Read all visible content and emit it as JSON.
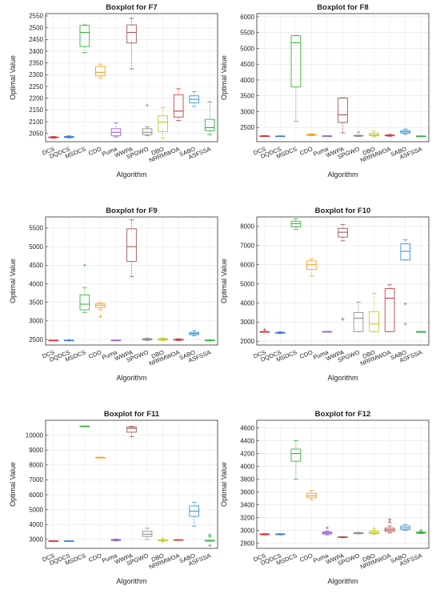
{
  "chart_data": [
    {
      "type": "box",
      "title": "Boxplot for F7",
      "xlabel": "Algorithm",
      "ylabel": "Optimal Value",
      "ylim": [
        2015,
        2560
      ],
      "yticks": [
        2050,
        2100,
        2150,
        2200,
        2250,
        2300,
        2350,
        2400,
        2450,
        2500,
        2550
      ],
      "grid": true,
      "categories": [
        "DCS",
        "DQDCS",
        "MSDCS",
        "CDO",
        "Puma",
        "WWPA",
        "SPGWO",
        "DBO",
        "NRRMWOA",
        "SABO",
        "ASFSSA"
      ],
      "colors": [
        "#e03030",
        "#3a7ed8",
        "#3cb43c",
        "#f5a020",
        "#9a5fd0",
        "#9e5a50",
        "#909090",
        "#c8c830",
        "#c84040",
        "#3c9ad0",
        "#30b040"
      ],
      "boxes": [
        {
          "min": 2030,
          "q1": 2032,
          "median": 2034,
          "q3": 2035,
          "max": 2037,
          "outliers": []
        },
        {
          "min": 2031,
          "q1": 2033,
          "median": 2035,
          "q3": 2037,
          "max": 2040,
          "outliers": []
        },
        {
          "min": 2395,
          "q1": 2420,
          "median": 2480,
          "q3": 2510,
          "max": 2512,
          "outliers": []
        },
        {
          "min": 2285,
          "q1": 2295,
          "median": 2310,
          "q3": 2335,
          "max": 2345,
          "outliers": []
        },
        {
          "min": 2035,
          "q1": 2040,
          "median": 2055,
          "q3": 2070,
          "max": 2095,
          "outliers": []
        },
        {
          "min": 2325,
          "q1": 2435,
          "median": 2480,
          "q3": 2512,
          "max": 2540,
          "outliers": []
        },
        {
          "min": 2040,
          "q1": 2045,
          "median": 2055,
          "q3": 2070,
          "max": 2078,
          "outliers": [
            2170
          ]
        },
        {
          "min": 2030,
          "q1": 2058,
          "median": 2098,
          "q3": 2125,
          "max": 2160,
          "outliers": []
        },
        {
          "min": 2105,
          "q1": 2120,
          "median": 2145,
          "q3": 2215,
          "max": 2240,
          "outliers": []
        },
        {
          "min": 2165,
          "q1": 2180,
          "median": 2195,
          "q3": 2210,
          "max": 2228,
          "outliers": []
        },
        {
          "min": 2045,
          "q1": 2062,
          "median": 2075,
          "q3": 2110,
          "max": 2185,
          "outliers": []
        }
      ]
    },
    {
      "type": "box",
      "title": "Boxplot for F8",
      "xlabel": "Algorithm",
      "ylabel": "Optimal Value",
      "ylim": [
        2050,
        6100
      ],
      "yticks": [
        2500,
        3000,
        3500,
        4000,
        4500,
        5000,
        5500,
        6000
      ],
      "grid": true,
      "categories": [
        "DCS",
        "DQDCS",
        "MSDCS",
        "CDO",
        "Puma",
        "WWPA",
        "SPGWO",
        "DBO",
        "NRRMWOA",
        "SABO",
        "ASFSSA"
      ],
      "colors": [
        "#e03030",
        "#3a7ed8",
        "#3cb43c",
        "#f5a020",
        "#9a5fd0",
        "#9e5a50",
        "#909090",
        "#c8c830",
        "#c84040",
        "#3c9ad0",
        "#30b040"
      ],
      "boxes": [
        {
          "min": 2220,
          "q1": 2225,
          "median": 2230,
          "q3": 2235,
          "max": 2245,
          "outliers": []
        },
        {
          "min": 2215,
          "q1": 2220,
          "median": 2225,
          "q3": 2230,
          "max": 2235,
          "outliers": []
        },
        {
          "min": 2700,
          "q1": 3780,
          "median": 5180,
          "q3": 5400,
          "max": 5410,
          "outliers": []
        },
        {
          "min": 2240,
          "q1": 2250,
          "median": 2270,
          "q3": 2285,
          "max": 2300,
          "outliers": []
        },
        {
          "min": 2225,
          "q1": 2228,
          "median": 2232,
          "q3": 2236,
          "max": 2240,
          "outliers": []
        },
        {
          "min": 2330,
          "q1": 2660,
          "median": 2900,
          "q3": 3430,
          "max": 3440,
          "outliers": []
        },
        {
          "min": 2210,
          "q1": 2225,
          "median": 2240,
          "q3": 2250,
          "max": 2260,
          "outliers": [
            2350
          ]
        },
        {
          "min": 2215,
          "q1": 2240,
          "median": 2270,
          "q3": 2320,
          "max": 2380,
          "outliers": []
        },
        {
          "min": 2220,
          "q1": 2235,
          "median": 2245,
          "q3": 2260,
          "max": 2280,
          "outliers": []
        },
        {
          "min": 2280,
          "q1": 2320,
          "median": 2360,
          "q3": 2400,
          "max": 2450,
          "outliers": []
        },
        {
          "min": 2215,
          "q1": 2220,
          "median": 2225,
          "q3": 2230,
          "max": 2235,
          "outliers": []
        }
      ]
    },
    {
      "type": "box",
      "title": "Boxplot for F9",
      "xlabel": "Algorithm",
      "ylabel": "Optimal Value",
      "ylim": [
        2350,
        5800
      ],
      "yticks": [
        2500,
        3000,
        3500,
        4000,
        4500,
        5000,
        5500
      ],
      "grid": true,
      "categories": [
        "DCS",
        "DQDCS",
        "MSDCS",
        "CDO",
        "Puma",
        "WWPA",
        "SPGWO",
        "DBO",
        "NRRMWOA",
        "SABO",
        "ASFSSA"
      ],
      "colors": [
        "#e03030",
        "#3a7ed8",
        "#3cb43c",
        "#f5a020",
        "#9a5fd0",
        "#9e5a50",
        "#909090",
        "#c8c830",
        "#c84040",
        "#3c9ad0",
        "#30b040"
      ],
      "boxes": [
        {
          "min": 2478,
          "q1": 2479,
          "median": 2480,
          "q3": 2481,
          "max": 2482,
          "outliers": []
        },
        {
          "min": 2478,
          "q1": 2479,
          "median": 2480,
          "q3": 2481,
          "max": 2482,
          "outliers": [
            2480
          ]
        },
        {
          "min": 3220,
          "q1": 3300,
          "median": 3450,
          "q3": 3700,
          "max": 3900,
          "outliers": [
            4500
          ]
        },
        {
          "min": 3300,
          "q1": 3360,
          "median": 3420,
          "q3": 3460,
          "max": 3500,
          "outliers": [
            3120
          ]
        },
        {
          "min": 2478,
          "q1": 2479,
          "median": 2480,
          "q3": 2481,
          "max": 2482,
          "outliers": []
        },
        {
          "min": 4200,
          "q1": 4600,
          "median": 5000,
          "q3": 5480,
          "max": 5720,
          "outliers": []
        },
        {
          "min": 2470,
          "q1": 2485,
          "median": 2500,
          "q3": 2520,
          "max": 2540,
          "outliers": []
        },
        {
          "min": 2470,
          "q1": 2485,
          "median": 2500,
          "q3": 2520,
          "max": 2540,
          "outliers": []
        },
        {
          "min": 2470,
          "q1": 2482,
          "median": 2495,
          "q3": 2505,
          "max": 2520,
          "outliers": []
        },
        {
          "min": 2600,
          "q1": 2630,
          "median": 2660,
          "q3": 2690,
          "max": 2740,
          "outliers": []
        },
        {
          "min": 2478,
          "q1": 2479,
          "median": 2480,
          "q3": 2481,
          "max": 2482,
          "outliers": [
            2480
          ]
        }
      ]
    },
    {
      "type": "box",
      "title": "Boxplot for F10",
      "xlabel": "Algorithm",
      "ylabel": "Optimal Value",
      "ylim": [
        1800,
        8500
      ],
      "yticks": [
        2000,
        3000,
        4000,
        5000,
        6000,
        7000,
        8000
      ],
      "grid": true,
      "categories": [
        "DCS",
        "DQDCS",
        "MSDCS",
        "CDO",
        "Puma",
        "WWPA",
        "SPGWO",
        "DBO",
        "NRRMWOA",
        "SABO",
        "ASFSSA"
      ],
      "colors": [
        "#e03030",
        "#3a7ed8",
        "#3cb43c",
        "#f5a020",
        "#9a5fd0",
        "#9e5a50",
        "#909090",
        "#c8c830",
        "#c84040",
        "#3c9ad0",
        "#30b040"
      ],
      "boxes": [
        {
          "min": 2500,
          "q1": 2500,
          "median": 2500,
          "q3": 2500,
          "max": 2500,
          "outliers": [
            2600
          ]
        },
        {
          "min": 2400,
          "q1": 2420,
          "median": 2440,
          "q3": 2460,
          "max": 2500,
          "outliers": []
        },
        {
          "min": 7850,
          "q1": 7980,
          "median": 8150,
          "q3": 8280,
          "max": 8400,
          "outliers": []
        },
        {
          "min": 5400,
          "q1": 5750,
          "median": 6000,
          "q3": 6200,
          "max": 6300,
          "outliers": []
        },
        {
          "min": 2490,
          "q1": 2495,
          "median": 2500,
          "q3": 2505,
          "max": 2510,
          "outliers": []
        },
        {
          "min": 7250,
          "q1": 7450,
          "median": 7700,
          "q3": 7900,
          "max": 8100,
          "outliers": [
            3150
          ]
        },
        {
          "min": 2500,
          "q1": 2500,
          "median": 3200,
          "q3": 3500,
          "max": 4050,
          "outliers": []
        },
        {
          "min": 2500,
          "q1": 2500,
          "median": 2900,
          "q3": 3550,
          "max": 4500,
          "outliers": []
        },
        {
          "min": 2500,
          "q1": 2500,
          "median": 4250,
          "q3": 4750,
          "max": 4950,
          "outliers": []
        },
        {
          "min": 6250,
          "q1": 6250,
          "median": 6700,
          "q3": 7100,
          "max": 7300,
          "outliers": [
            3950,
            2900
          ]
        },
        {
          "min": 2500,
          "q1": 2500,
          "median": 2500,
          "q3": 2500,
          "max": 2500,
          "outliers": []
        }
      ]
    },
    {
      "type": "box",
      "title": "Boxplot for F11",
      "xlabel": "Algorithm",
      "ylabel": "Optimal Value",
      "ylim": [
        2400,
        11000
      ],
      "yticks": [
        3000,
        4000,
        5000,
        6000,
        7000,
        8000,
        9000,
        10000
      ],
      "grid": true,
      "categories": [
        "DCS",
        "DQDCS",
        "MSDCS",
        "CDO",
        "Puma",
        "WWPA",
        "SPGWO",
        "DBO",
        "NRRMWOA",
        "SABO",
        "ASFSSA"
      ],
      "colors": [
        "#e03030",
        "#3a7ed8",
        "#3cb43c",
        "#f5a020",
        "#9a5fd0",
        "#9e5a50",
        "#909090",
        "#c8c830",
        "#c84040",
        "#3c9ad0",
        "#30b040"
      ],
      "boxes": [
        {
          "min": 2890,
          "q1": 2895,
          "median": 2900,
          "q3": 2905,
          "max": 2910,
          "outliers": []
        },
        {
          "min": 2890,
          "q1": 2895,
          "median": 2900,
          "q3": 2905,
          "max": 2910,
          "outliers": []
        },
        {
          "min": 10580,
          "q1": 10590,
          "median": 10600,
          "q3": 10610,
          "max": 10620,
          "outliers": []
        },
        {
          "min": 8480,
          "q1": 8490,
          "median": 8500,
          "q3": 8510,
          "max": 8520,
          "outliers": []
        },
        {
          "min": 2900,
          "q1": 2930,
          "median": 2970,
          "q3": 3000,
          "max": 3020,
          "outliers": []
        },
        {
          "min": 9900,
          "q1": 10200,
          "median": 10450,
          "q3": 10550,
          "max": 10600,
          "outliers": []
        },
        {
          "min": 3000,
          "q1": 3200,
          "median": 3350,
          "q3": 3550,
          "max": 3750,
          "outliers": []
        },
        {
          "min": 2930,
          "q1": 2940,
          "median": 2950,
          "q3": 2960,
          "max": 2970,
          "outliers": [
            3050,
            2850
          ]
        },
        {
          "min": 2930,
          "q1": 2945,
          "median": 2960,
          "q3": 2980,
          "max": 2990,
          "outliers": []
        },
        {
          "min": 3900,
          "q1": 4550,
          "median": 4900,
          "q3": 5250,
          "max": 5500,
          "outliers": []
        },
        {
          "min": 2900,
          "q1": 2910,
          "median": 2920,
          "q3": 2930,
          "max": 2940,
          "outliers": [
            3300,
            3200,
            2600
          ]
        }
      ]
    },
    {
      "type": "box",
      "title": "Boxplot for F12",
      "xlabel": "Algorithm",
      "ylabel": "Optimal Value",
      "ylim": [
        2720,
        4720
      ],
      "yticks": [
        2800,
        3000,
        3200,
        3400,
        3600,
        3800,
        4000,
        4200,
        4400,
        4600
      ],
      "grid": true,
      "categories": [
        "DCS",
        "DQDCS",
        "MSDCS",
        "CDO",
        "Puma",
        "WWPA",
        "SPGWO",
        "DBO",
        "NRRMWOA",
        "SABO",
        "ASFSSA"
      ],
      "colors": [
        "#e03030",
        "#3a7ed8",
        "#3cb43c",
        "#f5a020",
        "#9a5fd0",
        "#9e5a50",
        "#909090",
        "#c8c830",
        "#c84040",
        "#3c9ad0",
        "#30b040"
      ],
      "boxes": [
        {
          "min": 2930,
          "q1": 2935,
          "median": 2940,
          "q3": 2945,
          "max": 2950,
          "outliers": []
        },
        {
          "min": 2930,
          "q1": 2935,
          "median": 2940,
          "q3": 2945,
          "max": 2950,
          "outliers": []
        },
        {
          "min": 3800,
          "q1": 4080,
          "median": 4200,
          "q3": 4270,
          "max": 4400,
          "outliers": []
        },
        {
          "min": 3480,
          "q1": 3510,
          "median": 3540,
          "q3": 3580,
          "max": 3620,
          "outliers": []
        },
        {
          "min": 2930,
          "q1": 2945,
          "median": 2960,
          "q3": 2975,
          "max": 2990,
          "outliers": [
            3040
          ]
        },
        {
          "min": 2885,
          "q1": 2890,
          "median": 2895,
          "q3": 2900,
          "max": 2905,
          "outliers": []
        },
        {
          "min": 2945,
          "q1": 2950,
          "median": 2958,
          "q3": 2965,
          "max": 2970,
          "outliers": []
        },
        {
          "min": 2940,
          "q1": 2950,
          "median": 2965,
          "q3": 2985,
          "max": 3000,
          "outliers": [
            3030
          ]
        },
        {
          "min": 2960,
          "q1": 2985,
          "median": 3010,
          "q3": 3035,
          "max": 3070,
          "outliers": [
            3170,
            3130
          ]
        },
        {
          "min": 3000,
          "q1": 3015,
          "median": 3040,
          "q3": 3070,
          "max": 3095,
          "outliers": []
        },
        {
          "min": 2950,
          "q1": 2958,
          "median": 2965,
          "q3": 2972,
          "max": 2980,
          "outliers": [
            3000
          ]
        }
      ]
    }
  ]
}
